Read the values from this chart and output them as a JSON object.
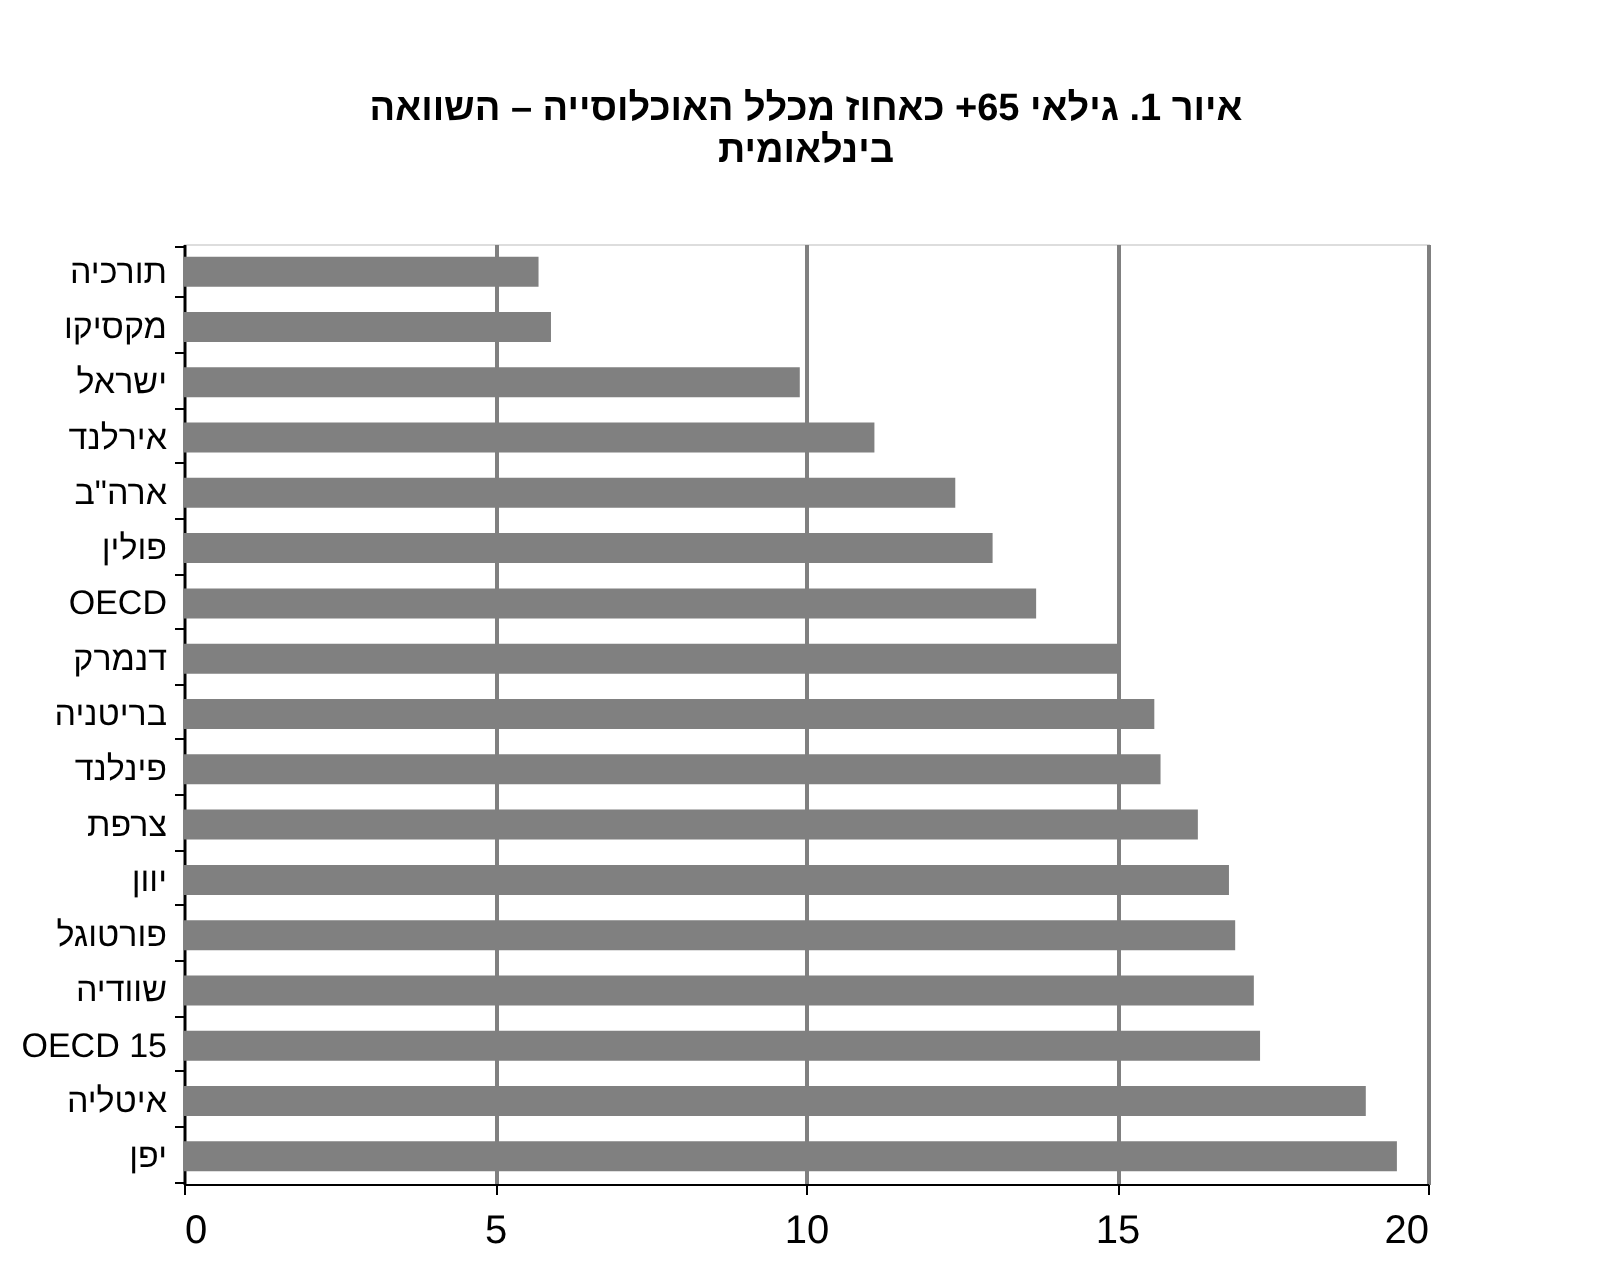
{
  "chart_data": {
    "type": "bar",
    "orientation": "horizontal",
    "title": "איור 1. גילאי 65+ כאחוז מכלל האוכלוסייה – השוואה בינלאומית",
    "categories": [
      "תורכיה",
      "מקסיקו",
      "ישראל",
      "אירלנד",
      "ארה\"ב",
      "פולין",
      "OECD",
      "דנמרק",
      "בריטניה",
      "פינלנד",
      "צרפת",
      "יוון",
      "פורטוגל",
      "שוודיה",
      "OECD 15",
      "איטליה",
      "יפן"
    ],
    "values": [
      5.7,
      5.9,
      9.9,
      11.1,
      12.4,
      13.0,
      13.7,
      15.0,
      15.6,
      15.7,
      16.3,
      16.8,
      16.9,
      17.2,
      17.3,
      19.0,
      19.5
    ],
    "color": "#808080",
    "xlim": [
      0,
      20
    ],
    "xticks": [
      0,
      5,
      10,
      15,
      20
    ],
    "grid": "x"
  }
}
